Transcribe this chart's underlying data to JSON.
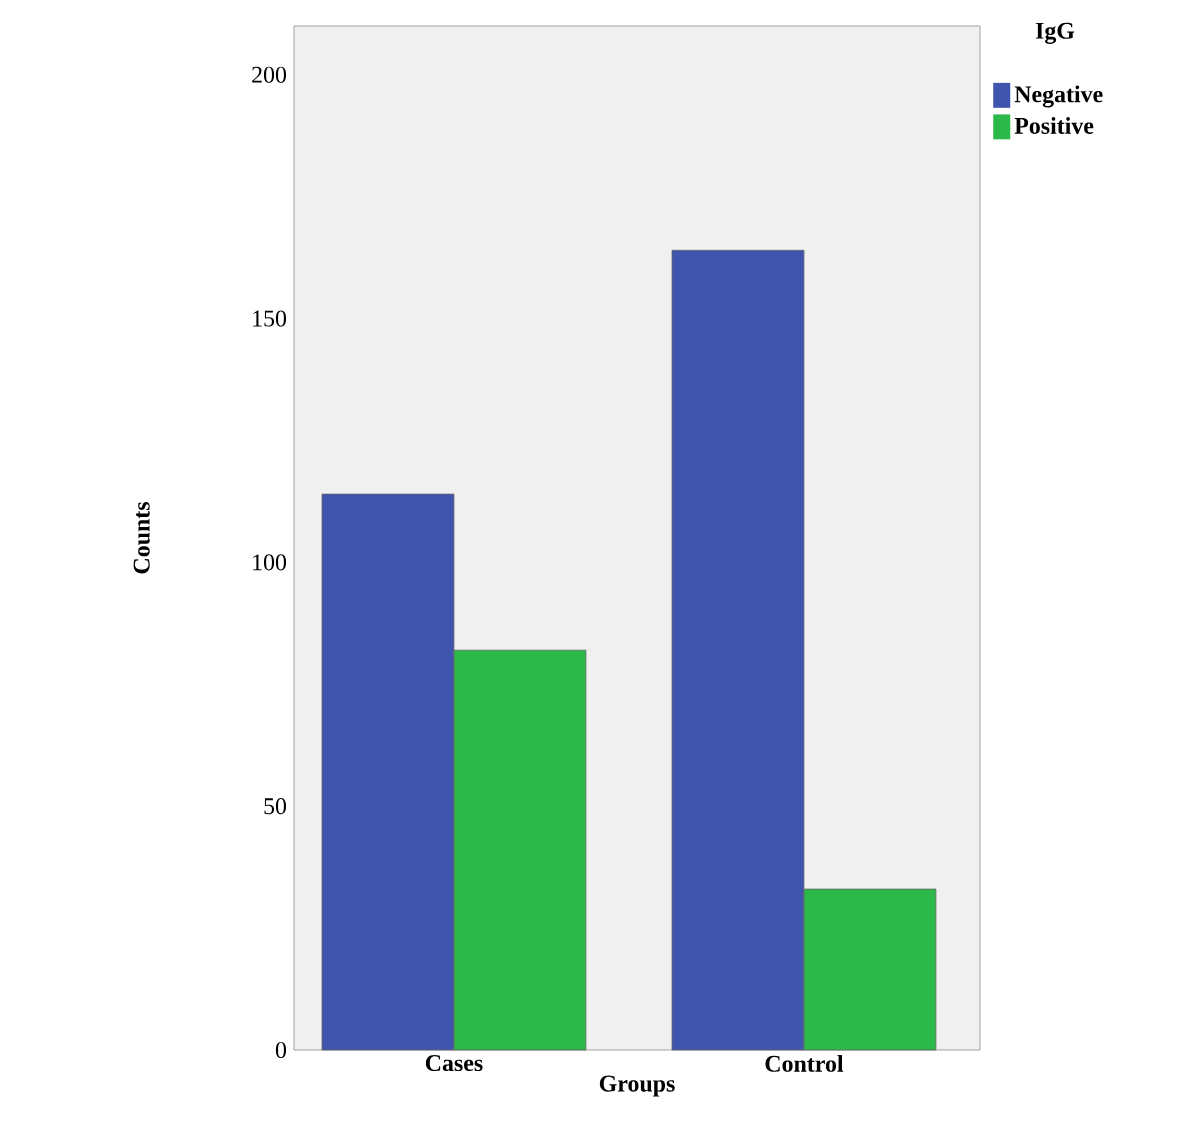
{
  "chart_data": {
    "type": "bar",
    "xlabel": "Groups",
    "ylabel": "Counts",
    "legend_title": "IgG",
    "categories": [
      "Cases",
      "Control"
    ],
    "series": [
      {
        "name": "Negative",
        "color": "#3f55ad",
        "values": [
          114,
          164
        ]
      },
      {
        "name": "Positive",
        "color": "#2db84a",
        "values": [
          82,
          33
        ]
      }
    ],
    "ylim": [
      0,
      210
    ],
    "yticks": [
      0,
      50,
      100,
      150,
      200
    ],
    "grid": false,
    "legend": "top right"
  }
}
